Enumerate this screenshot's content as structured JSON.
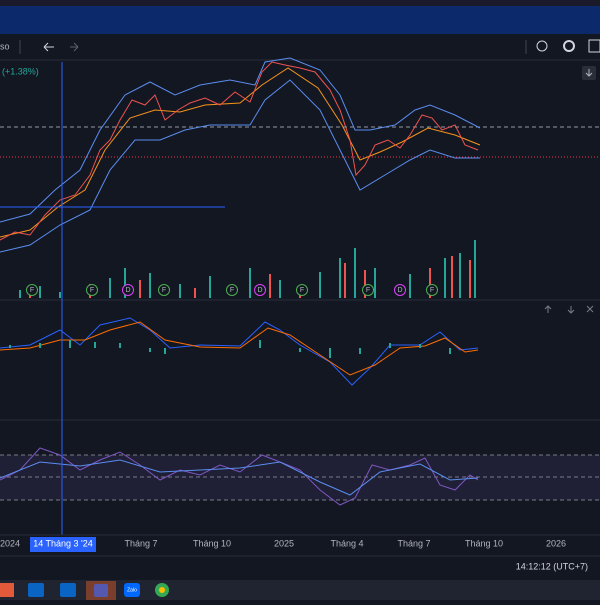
{
  "toolbar": {
    "symbol": "so"
  },
  "legend": {
    "change": "(+1.38%)"
  },
  "events": [
    "F",
    "F",
    "D",
    "F",
    "F",
    "D",
    "F",
    "F",
    "D",
    "F"
  ],
  "x_axis": {
    "labels": [
      "2024",
      "14 Tháng 3 '24",
      "Tháng 7",
      "Tháng 10",
      "2025",
      "Tháng 4",
      "Tháng 7",
      "Tháng 10",
      "2026"
    ]
  },
  "status": {
    "time": "14:12:12 (UTC+7)"
  },
  "taskbar": {
    "apps": [
      "Zalo"
    ]
  }
}
